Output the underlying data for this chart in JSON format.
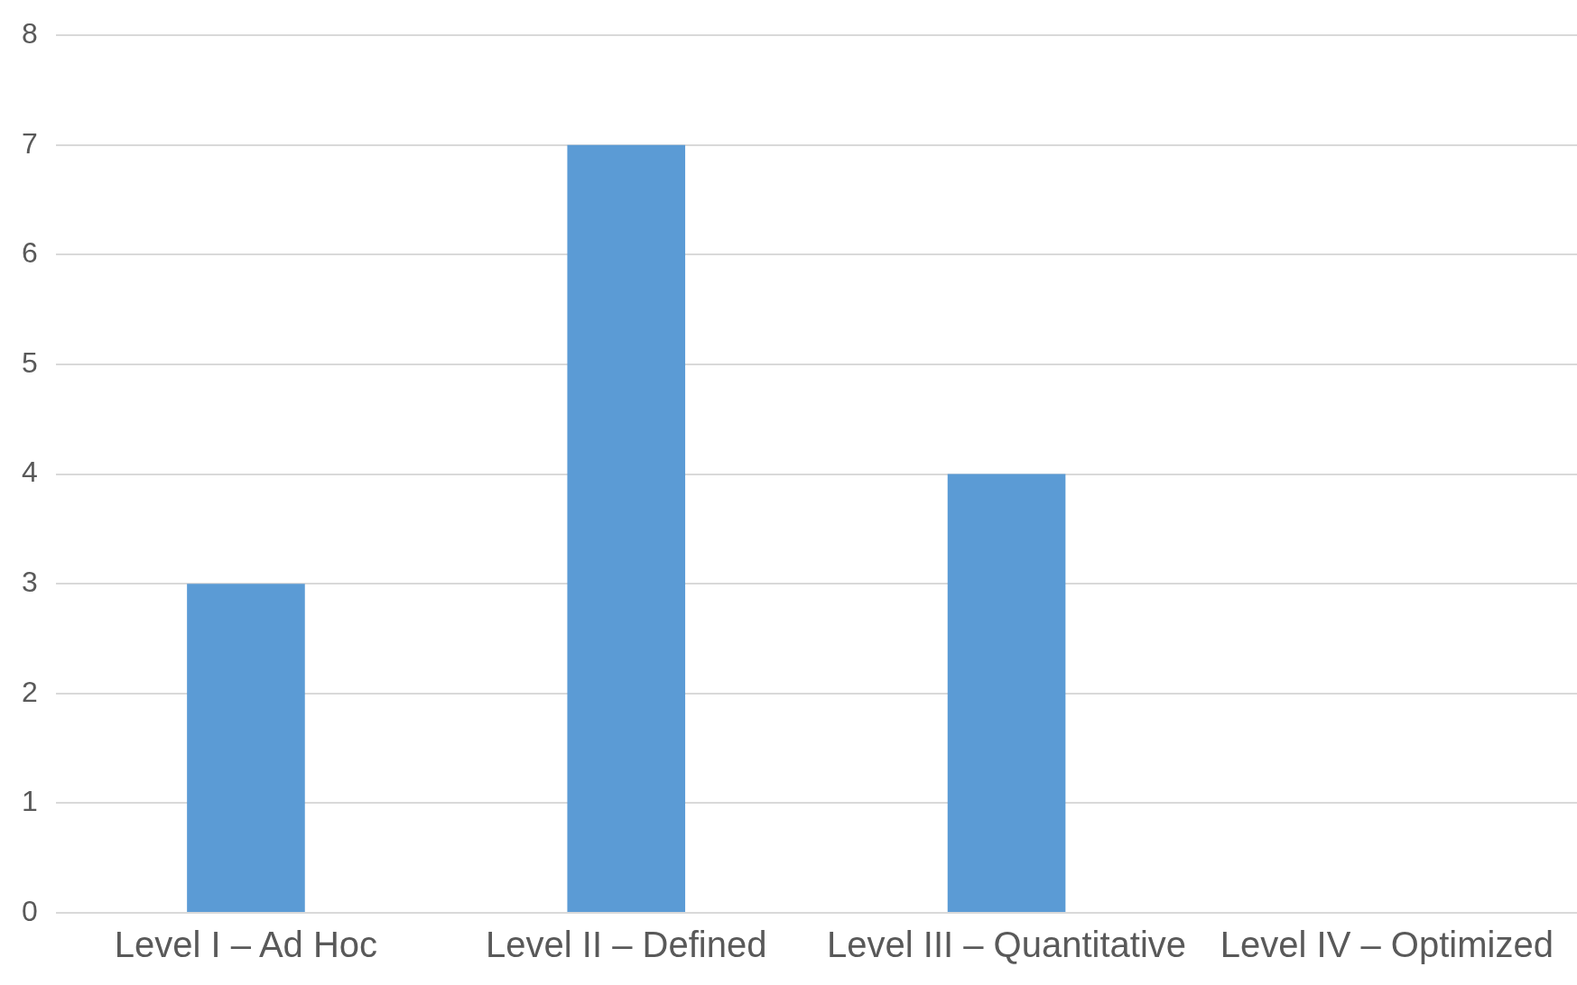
{
  "chart_data": {
    "type": "bar",
    "categories": [
      "Level I – Ad Hoc",
      "Level II – Defined",
      "Level III – Quantitative",
      "Level IV – Optimized"
    ],
    "values": [
      3,
      7,
      4,
      0
    ],
    "color": "#5b9bd5",
    "ylim": [
      0,
      8
    ],
    "yticks": [
      0,
      1,
      2,
      3,
      4,
      5,
      6,
      7,
      8
    ],
    "grid": "y",
    "legend": false
  }
}
